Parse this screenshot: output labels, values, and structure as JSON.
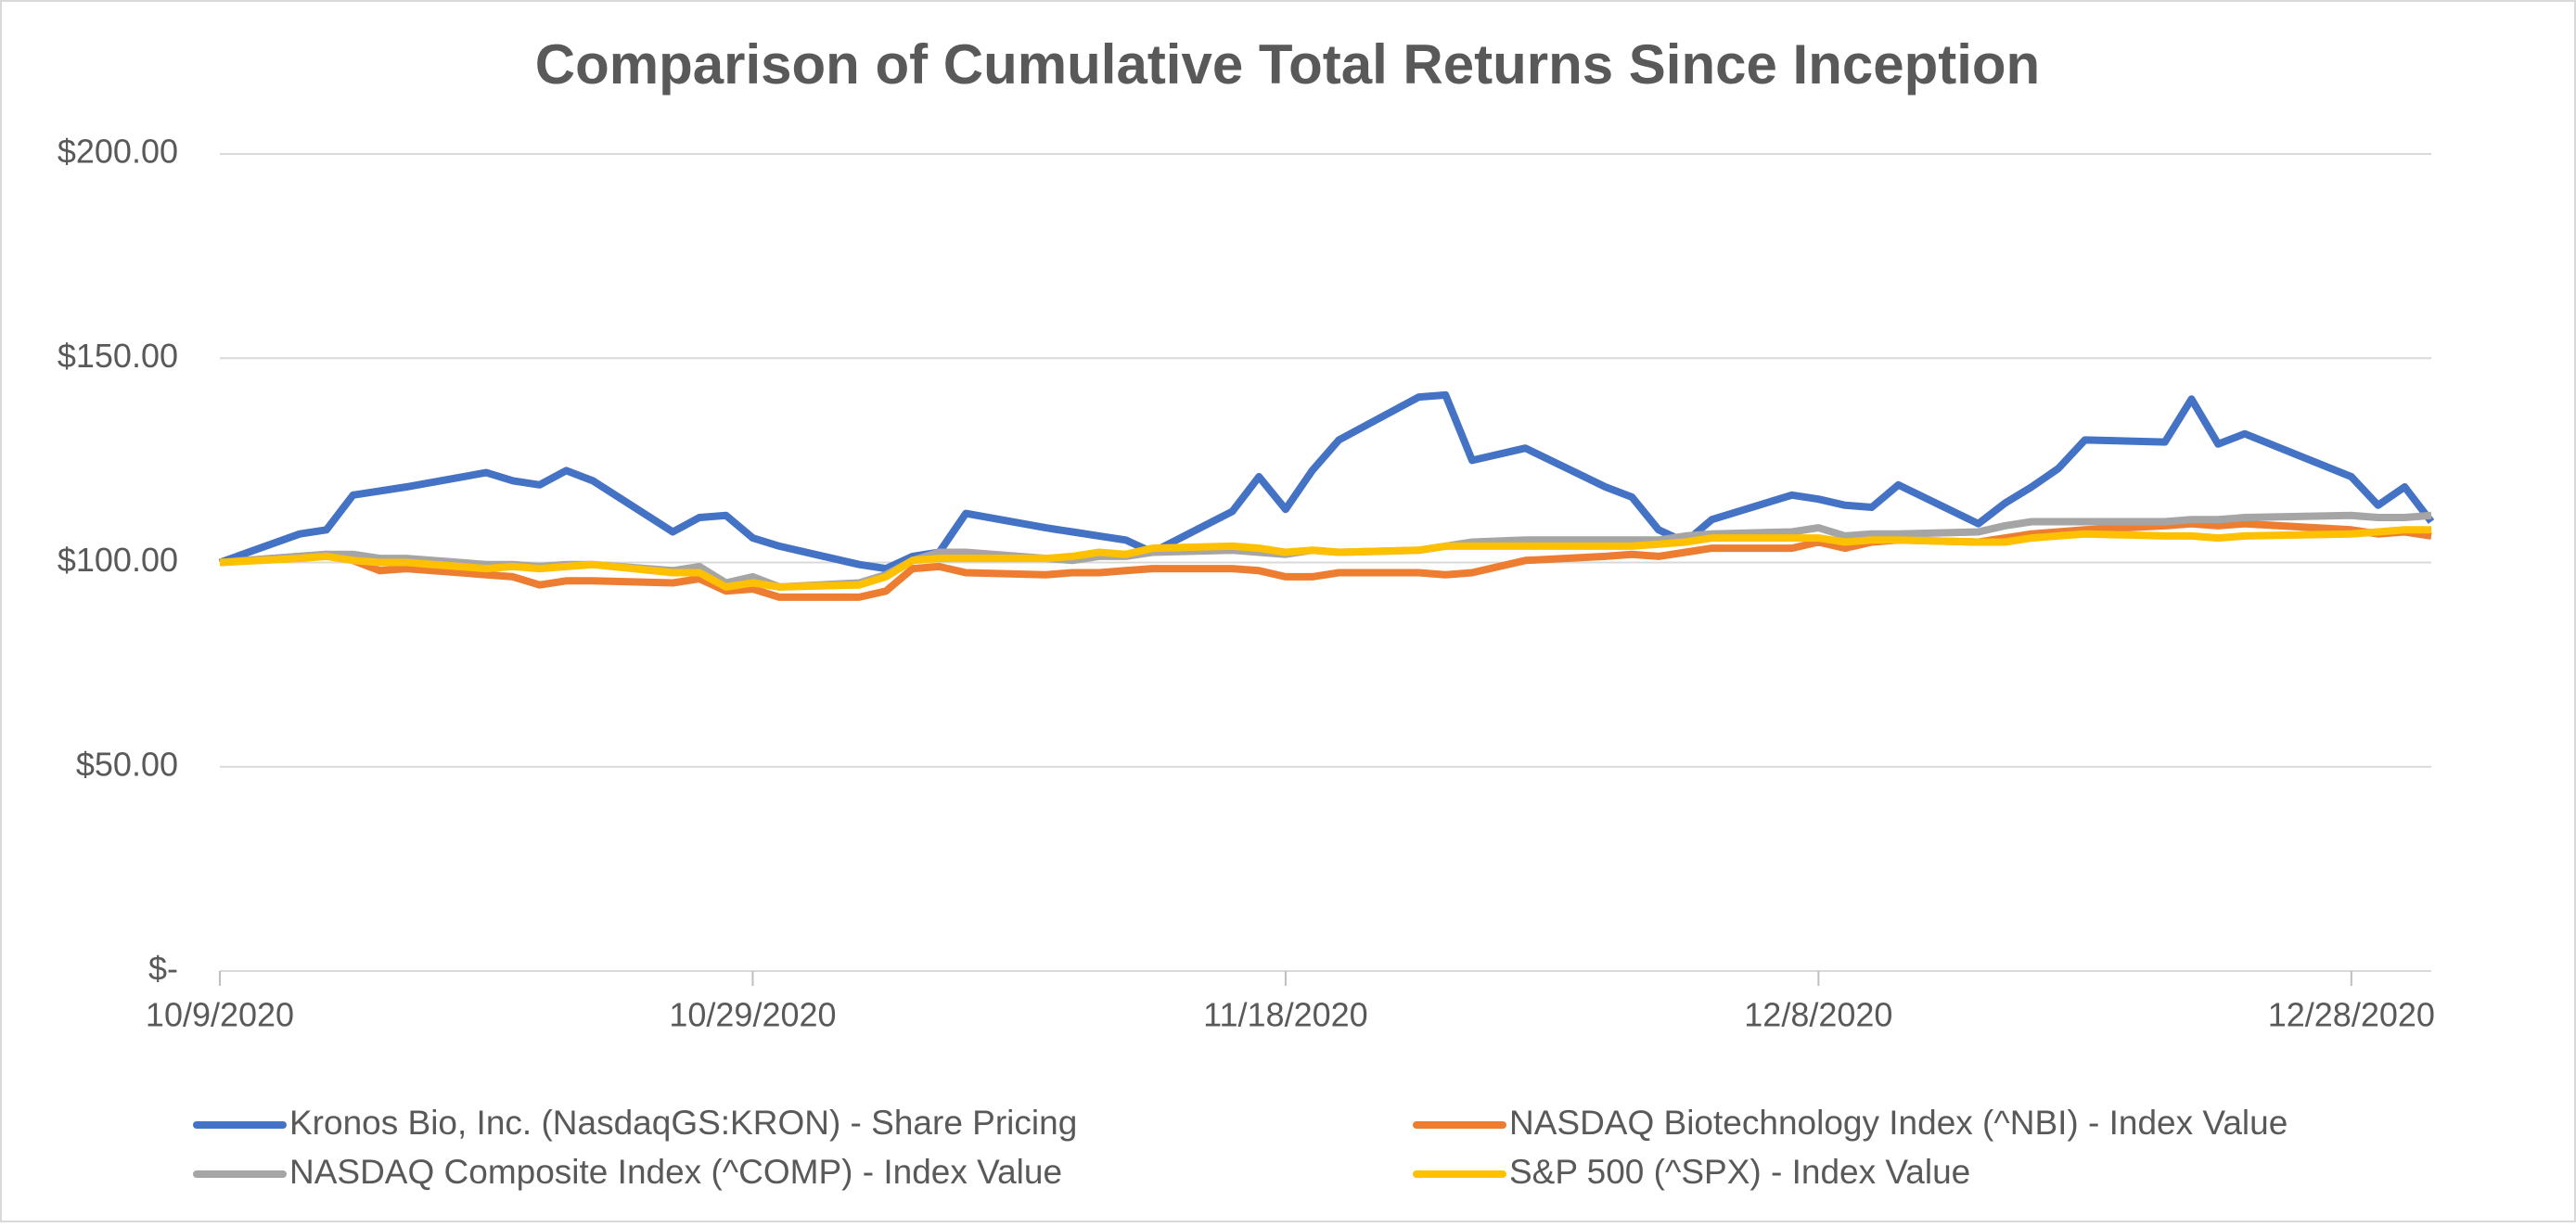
{
  "chart_data": {
    "type": "line",
    "title": "Comparison of Cumulative Total Returns Since Inception",
    "x": [
      "10/9/2020",
      "10/12/2020",
      "10/13/2020",
      "10/14/2020",
      "10/15/2020",
      "10/16/2020",
      "10/19/2020",
      "10/20/2020",
      "10/21/2020",
      "10/22/2020",
      "10/23/2020",
      "10/26/2020",
      "10/27/2020",
      "10/28/2020",
      "10/29/2020",
      "10/30/2020",
      "11/2/2020",
      "11/3/2020",
      "11/4/2020",
      "11/5/2020",
      "11/6/2020",
      "11/9/2020",
      "11/10/2020",
      "11/11/2020",
      "11/12/2020",
      "11/13/2020",
      "11/16/2020",
      "11/17/2020",
      "11/18/2020",
      "11/19/2020",
      "11/20/2020",
      "11/23/2020",
      "11/24/2020",
      "11/25/2020",
      "11/27/2020",
      "11/30/2020",
      "12/1/2020",
      "12/2/2020",
      "12/3/2020",
      "12/4/2020",
      "12/7/2020",
      "12/8/2020",
      "12/9/2020",
      "12/10/2020",
      "12/11/2020",
      "12/14/2020",
      "12/15/2020",
      "12/16/2020",
      "12/17/2020",
      "12/18/2020",
      "12/21/2020",
      "12/22/2020",
      "12/23/2020",
      "12/24/2020",
      "12/28/2020",
      "12/29/2020",
      "12/30/2020",
      "12/31/2020"
    ],
    "series": [
      {
        "name": "Kronos Bio, Inc. (NasdaqGS:KRON) - Share Pricing",
        "color": "#4472c4",
        "values": [
          100,
          107,
          108,
          116.5,
          117.5,
          118.5,
          122,
          120,
          119,
          122.5,
          120,
          107.5,
          111,
          111.5,
          106,
          104,
          99.5,
          98.5,
          101.5,
          102.5,
          112,
          108.5,
          107.5,
          106.5,
          105.5,
          102.5,
          112.5,
          121,
          113,
          122.5,
          130,
          140.5,
          141,
          125,
          128,
          118.5,
          116,
          108,
          105,
          110.5,
          116.5,
          115.5,
          114,
          113.5,
          119,
          109.5,
          114.5,
          118.5,
          123,
          130,
          129.5,
          140,
          129,
          131.5,
          121,
          114,
          118.5,
          110
        ]
      },
      {
        "name": "NASDAQ Biotechnology Index (^NBI) - Index Value",
        "color": "#ed7d31",
        "values": [
          100,
          101.5,
          102,
          100.5,
          98,
          98.5,
          97,
          96.5,
          94.5,
          95.5,
          95.5,
          95,
          96,
          93,
          93.5,
          91.5,
          91.5,
          93,
          98.5,
          99,
          97.5,
          97,
          97.5,
          97.5,
          98,
          98.5,
          98.5,
          98,
          96.5,
          96.5,
          97.5,
          97.5,
          97,
          97.5,
          100.5,
          101.5,
          102,
          101.5,
          102.5,
          103.5,
          103.5,
          105,
          103.5,
          105,
          105.5,
          105,
          106,
          107,
          107.5,
          108,
          109,
          109.5,
          109,
          109.5,
          108,
          107,
          107.5,
          106.5
        ]
      },
      {
        "name": "NASDAQ Composite Index (^COMP) - Index Value",
        "color": "#a5a5a5",
        "values": [
          100,
          101.5,
          102,
          102,
          101,
          101,
          99.5,
          99.5,
          99,
          99.5,
          99.5,
          98,
          99,
          95,
          96.5,
          94,
          95,
          97,
          100.5,
          102.5,
          102.5,
          101,
          100.5,
          101.5,
          101.5,
          102.5,
          103,
          102.5,
          102,
          103,
          102.5,
          103,
          104,
          105,
          105.5,
          105.5,
          105.5,
          105.5,
          106.5,
          107,
          107.5,
          108.5,
          106.5,
          107,
          107,
          107.5,
          109,
          110,
          110,
          110,
          110,
          110.5,
          110.5,
          111,
          111.5,
          111,
          111,
          111.5
        ]
      },
      {
        "name": "S&P 500 (^SPX) - Index Value",
        "color": "#ffc000",
        "values": [
          100,
          101,
          101.5,
          100.5,
          100,
          100,
          98.5,
          99,
          98.5,
          99,
          99.5,
          97.5,
          97.5,
          94,
          95,
          94,
          94.5,
          96.5,
          100.5,
          101,
          101,
          101,
          101.5,
          102.5,
          102,
          103.5,
          104,
          103.5,
          102.5,
          103,
          102.5,
          103,
          104,
          104,
          104,
          104,
          104,
          104.5,
          105,
          106,
          106,
          106,
          105,
          105.5,
          105.5,
          105,
          105,
          106,
          106.5,
          107,
          106.5,
          106.5,
          106,
          106.5,
          107,
          107.5,
          108,
          108
        ]
      }
    ],
    "xlim": [
      "10/9/2020",
      "12/31/2020"
    ],
    "xticks": [
      "10/9/2020",
      "10/29/2020",
      "11/18/2020",
      "12/8/2020",
      "12/28/2020"
    ],
    "ylim": [
      0,
      200
    ],
    "yticks": [
      {
        "value": 0,
        "label": "$-"
      },
      {
        "value": 50,
        "label": "$50.00"
      },
      {
        "value": 100,
        "label": "$100.00"
      },
      {
        "value": 150,
        "label": "$150.00"
      },
      {
        "value": 200,
        "label": "$200.00"
      }
    ],
    "grid": true,
    "legend": "bottom"
  }
}
